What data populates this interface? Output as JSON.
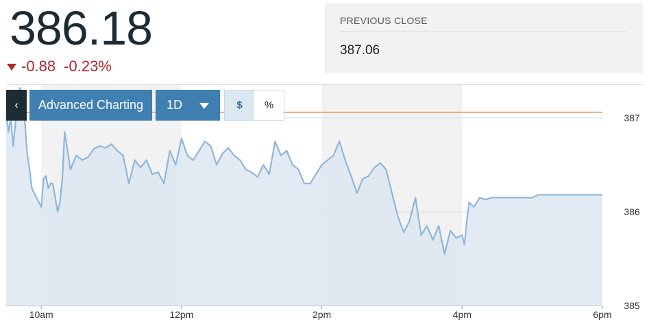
{
  "quote": {
    "price": "386.18",
    "change": "-0.88",
    "change_percent": "-0.23%",
    "direction_icon": "down-triangle-icon",
    "change_color": "#b0262b"
  },
  "previous_close": {
    "label": "PREVIOUS CLOSE",
    "value": "387.06"
  },
  "toolbar": {
    "back_glyph": "‹",
    "advanced_label": "Advanced Charting",
    "range_label": "1D",
    "dollar_label": "$",
    "percent_label": "%"
  },
  "colors": {
    "line": "#8fb6da",
    "area": "#dde8f1",
    "prev_close_line": "#e38a4f",
    "band": "#f2f2f2"
  },
  "chart_data": {
    "type": "area",
    "x_ticks": [
      "10am",
      "12pm",
      "2pm",
      "4pm",
      "6pm"
    ],
    "y_ticks": [
      "385",
      "386",
      "387"
    ],
    "ylim": [
      385,
      387.35
    ],
    "reference_line": {
      "value": 387.06
    },
    "grid": "horizontal at 385, 386, 387; alternating hourly shaded bands",
    "series": [
      {
        "x": [
          "9:30",
          "9:32",
          "9:34",
          "9:36",
          "9:38",
          "9:40",
          "9:42",
          "9:44",
          "9:46",
          "9:48",
          "9:50",
          "9:52",
          "9:54",
          "9:56",
          "9:58",
          "10:00",
          "10:02",
          "10:04",
          "10:06",
          "10:08",
          "10:10",
          "10:12",
          "10:14",
          "10:16",
          "10:18",
          "10:20",
          "10:25",
          "10:30",
          "10:35",
          "10:40",
          "10:45",
          "10:50",
          "10:55",
          "11:00",
          "11:05",
          "11:10",
          "11:15",
          "11:20",
          "11:25",
          "11:30",
          "11:35",
          "11:40",
          "11:45",
          "11:50",
          "11:55",
          "12:00",
          "12:05",
          "12:10",
          "12:15",
          "12:20",
          "12:25",
          "12:30",
          "12:35",
          "12:40",
          "12:45",
          "12:50",
          "12:55",
          "13:00",
          "13:05",
          "13:10",
          "13:15",
          "13:20",
          "13:25",
          "13:30",
          "13:35",
          "13:40",
          "13:45",
          "13:50",
          "13:55",
          "14:00",
          "14:05",
          "14:10",
          "14:15",
          "14:20",
          "14:25",
          "14:30",
          "14:35",
          "14:40",
          "14:45",
          "14:50",
          "14:55",
          "15:00",
          "15:05",
          "15:10",
          "15:15",
          "15:20",
          "15:25",
          "15:30",
          "15:35",
          "15:40",
          "15:45",
          "15:50",
          "15:55",
          "16:00",
          "16:02",
          "16:04",
          "16:06",
          "16:10",
          "16:15",
          "16:20",
          "16:25",
          "16:30",
          "16:35",
          "16:40",
          "16:45",
          "16:50",
          "16:55",
          "17:00",
          "17:05",
          "17:10",
          "17:15",
          "17:20",
          "17:25",
          "17:30",
          "17:35",
          "17:40",
          "17:45",
          "17:50",
          "17:55",
          "18:00"
        ],
        "y": [
          387.05,
          386.85,
          387.0,
          386.7,
          386.95,
          387.15,
          387.32,
          387.2,
          386.95,
          386.62,
          386.45,
          386.25,
          386.2,
          386.15,
          386.1,
          386.05,
          386.35,
          386.38,
          386.25,
          386.3,
          386.3,
          386.15,
          386.0,
          386.1,
          386.35,
          386.85,
          386.45,
          386.6,
          386.55,
          386.58,
          386.67,
          386.7,
          386.68,
          386.72,
          386.65,
          386.6,
          386.3,
          386.55,
          386.47,
          386.55,
          386.4,
          386.42,
          386.3,
          386.65,
          386.5,
          386.78,
          386.6,
          386.55,
          386.65,
          386.75,
          386.7,
          386.5,
          386.62,
          386.68,
          386.6,
          386.55,
          386.45,
          386.42,
          386.37,
          386.5,
          386.4,
          386.75,
          386.6,
          386.65,
          386.5,
          386.45,
          386.3,
          386.3,
          386.4,
          386.5,
          386.55,
          386.6,
          386.75,
          386.55,
          386.38,
          386.2,
          386.35,
          386.38,
          386.47,
          386.52,
          386.45,
          386.2,
          385.95,
          385.78,
          385.9,
          386.15,
          385.75,
          385.85,
          385.7,
          385.85,
          385.55,
          385.8,
          385.72,
          385.75,
          385.65,
          385.9,
          386.1,
          386.05,
          386.15,
          386.13,
          386.15,
          386.15,
          386.15,
          386.15,
          386.15,
          386.15,
          386.15,
          386.15,
          386.18,
          386.18,
          386.18,
          386.18,
          386.18,
          386.18,
          386.18,
          386.18,
          386.18,
          386.18,
          386.18,
          386.18
        ]
      }
    ]
  }
}
